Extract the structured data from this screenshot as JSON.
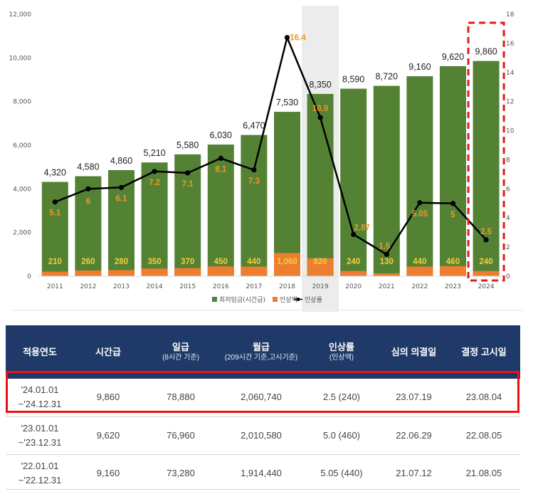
{
  "chart_data": {
    "type": "bar+line",
    "categories": [
      "2011",
      "2012",
      "2013",
      "2014",
      "2015",
      "2016",
      "2017",
      "2018",
      "2019",
      "2020",
      "2021",
      "2022",
      "2023",
      "2024"
    ],
    "series": [
      {
        "name": "최저임금(시간급)",
        "type": "bar",
        "color": "#548235",
        "values": [
          4320,
          4580,
          4860,
          5210,
          5580,
          6030,
          6470,
          7530,
          8350,
          8590,
          8720,
          9160,
          9620,
          9860
        ],
        "labels": [
          "4,320",
          "4,580",
          "4,860",
          "5,210",
          "5,580",
          "6,030",
          "6,470",
          "7,530",
          "8,350",
          "8,590",
          "8,720",
          "9,160",
          "9,620",
          "9,860"
        ]
      },
      {
        "name": "인상액",
        "type": "bar",
        "color": "#ed7d31",
        "values": [
          210,
          260,
          280,
          350,
          370,
          450,
          440,
          1060,
          820,
          240,
          130,
          440,
          460,
          240
        ],
        "labels": [
          "210",
          "260",
          "280",
          "350",
          "370",
          "450",
          "440",
          "1,060",
          "820",
          "240",
          "130",
          "440",
          "460",
          "240"
        ]
      },
      {
        "name": "인상률",
        "type": "line",
        "axis": "right",
        "color": "#000000",
        "values": [
          5.1,
          6,
          6.1,
          7.2,
          7.1,
          8.1,
          7.3,
          16.4,
          10.9,
          2.87,
          1.5,
          5.05,
          5,
          2.5
        ],
        "labels": [
          "5.1",
          "6",
          "6.1",
          "7.2",
          "7.1",
          "8.1",
          "7.3",
          "16.4",
          "10.9",
          "2.87",
          "1.5",
          "5.05",
          "5",
          "2.5"
        ]
      }
    ],
    "y_left": {
      "min": 0,
      "max": 12000,
      "ticks": [
        "0",
        "2,000",
        "4,000",
        "6,000",
        "8,000",
        "10,000",
        "12,000"
      ]
    },
    "y_right": {
      "min": 0,
      "max": 18,
      "ticks": [
        "0",
        "2",
        "4",
        "6",
        "8",
        "10",
        "12",
        "14",
        "16",
        "18"
      ]
    },
    "highlighted_category": "2024",
    "shaded_category": "2019",
    "legend_position": "bottom"
  },
  "table": {
    "header_color": "#1f3a68",
    "highlight_color": "#ee1111",
    "columns": [
      {
        "label": "적용연도",
        "sub": ""
      },
      {
        "label": "시간급",
        "sub": ""
      },
      {
        "label": "일급",
        "sub": "(8시간 기준)"
      },
      {
        "label": "월급",
        "sub": "(209시간 기준,고시기준)"
      },
      {
        "label": "인상률",
        "sub": "(인상액)"
      },
      {
        "label": "심의 의결일",
        "sub": ""
      },
      {
        "label": "결정 고시일",
        "sub": ""
      }
    ],
    "rows": [
      {
        "period_start": "'24.01.01",
        "period_end": "~'24.12.31",
        "hourly": "9,860",
        "daily": "78,880",
        "monthly": "2,060,740",
        "rate": "2.5 (240)",
        "decided": "23.07.19",
        "announced": "23.08.04"
      },
      {
        "period_start": "'23.01.01",
        "period_end": "~'23.12.31",
        "hourly": "9,620",
        "daily": "76,960",
        "monthly": "2,010,580",
        "rate": "5.0 (460)",
        "decided": "22.06.29",
        "announced": "22.08.05"
      },
      {
        "period_start": "'22.01.01",
        "period_end": "~'22.12.31",
        "hourly": "9,160",
        "daily": "73,280",
        "monthly": "1,914,440",
        "rate": "5.05 (440)",
        "decided": "21.07.12",
        "announced": "21.08.05"
      }
    ]
  }
}
